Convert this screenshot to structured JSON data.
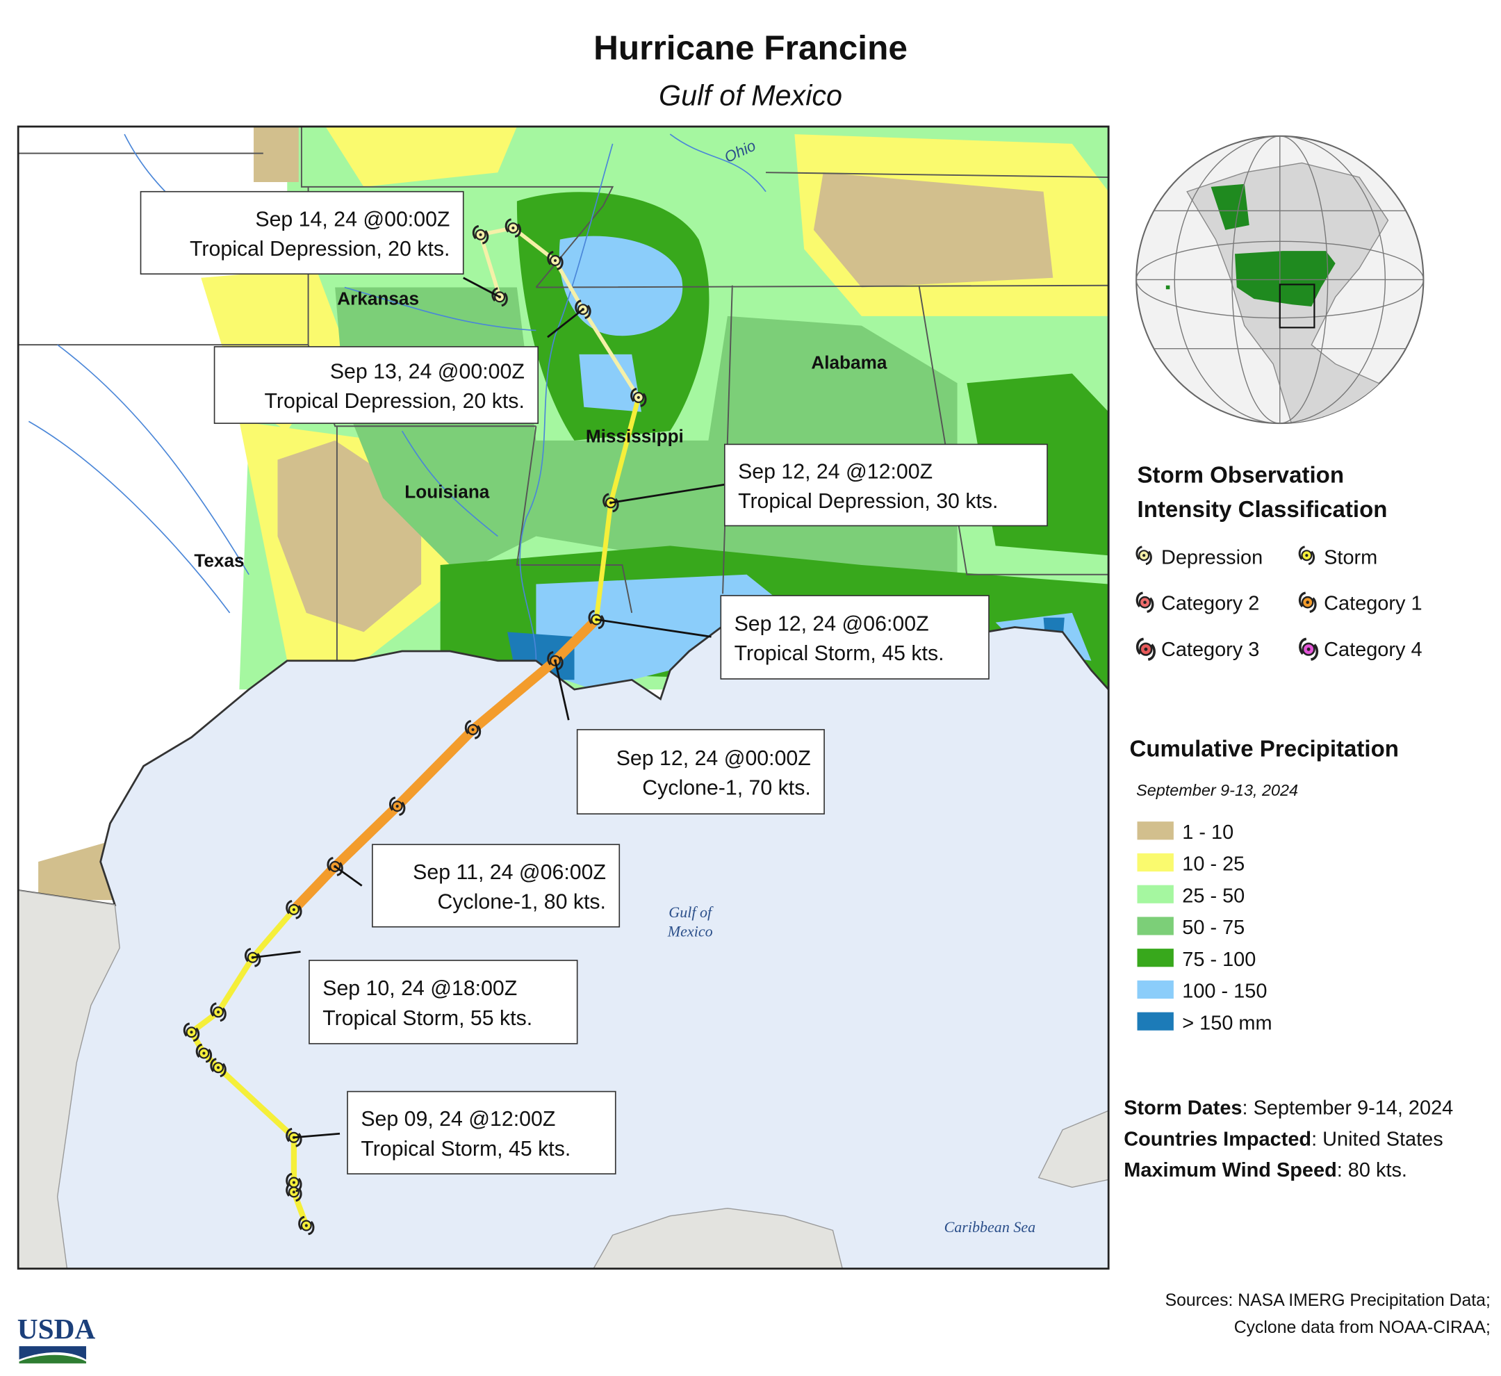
{
  "header": {
    "title": "Hurricane Francine",
    "subtitle": "Gulf of Mexico"
  },
  "map_labels": {
    "ohio": "Ohio",
    "arkansas": "Arkansas",
    "alabama": "Alabama",
    "mississippi": "Mississippi",
    "louisiana": "Louisiana",
    "texas": "Texas",
    "gulf": [
      "Gulf of",
      "Mexico"
    ],
    "caribbean": "Caribbean Sea"
  },
  "annotations": [
    {
      "date": "Sep 14, 24 @00:00Z",
      "status": "Tropical Depression, 20 kts."
    },
    {
      "date": "Sep 13, 24 @00:00Z",
      "status": "Tropical Depression, 20 kts."
    },
    {
      "date": "Sep 12, 24 @12:00Z",
      "status": "Tropical Depression, 30 kts."
    },
    {
      "date": "Sep 12, 24 @06:00Z",
      "status": "Tropical Storm, 45 kts."
    },
    {
      "date": "Sep 12, 24 @00:00Z",
      "status": "Cyclone-1, 70 kts."
    },
    {
      "date": "Sep 11, 24 @06:00Z",
      "status": "Cyclone-1, 80 kts."
    },
    {
      "date": "Sep 10, 24 @18:00Z",
      "status": "Tropical Storm, 55 kts."
    },
    {
      "date": "Sep 09, 24 @12:00Z",
      "status": "Tropical Storm, 45 kts."
    }
  ],
  "intensity_legend": {
    "title": [
      "Storm Observation",
      "Intensity Classification"
    ],
    "items": [
      {
        "label": "Depression",
        "color": "#f5f0a8"
      },
      {
        "label": "Storm",
        "color": "#f5ef3a"
      },
      {
        "label": "Category 2",
        "color": "#f06c6c"
      },
      {
        "label": "Category 1",
        "color": "#f39c2c"
      },
      {
        "label": "Category 3",
        "color": "#e85a5a"
      },
      {
        "label": "Category 4",
        "color": "#e455d8"
      }
    ]
  },
  "precip_legend": {
    "title": "Cumulative Precipitation",
    "subtitle": "September 9-13, 2024",
    "items": [
      {
        "label": "1 - 10",
        "color": "#d2bf8d"
      },
      {
        "label": "10 - 25",
        "color": "#fafa6e"
      },
      {
        "label": "25 - 50",
        "color": "#a5f7a0"
      },
      {
        "label": "50 - 75",
        "color": "#7ccf78"
      },
      {
        "label": "75 - 100",
        "color": "#38a81c"
      },
      {
        "label": "100 - 150",
        "color": "#8bcdfa"
      },
      {
        "label": "> 150 mm",
        "color": "#1c7bb8"
      }
    ]
  },
  "storm_info": [
    {
      "key": "Storm Dates",
      "value": ": September 9-14, 2024"
    },
    {
      "key": "Countries Impacted",
      "value": ": United States"
    },
    {
      "key": "Maximum Wind Speed",
      "value": ": 80 kts."
    }
  ],
  "sources": [
    "Sources: NASA IMERG Precipitation Data;",
    "Cyclone data from NOAA-CIRAA;"
  ],
  "logo": "USDA"
}
